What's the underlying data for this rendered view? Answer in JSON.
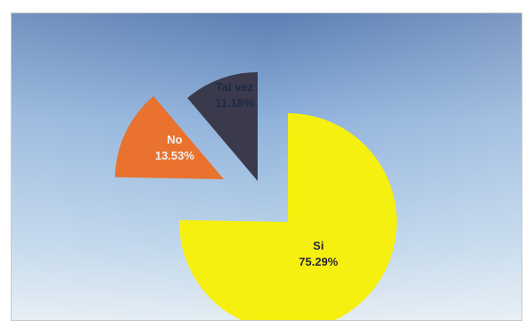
{
  "chart_data": {
    "type": "pie",
    "title": "",
    "exploded": true,
    "categories": [
      "Tal vez",
      "No",
      "Si"
    ],
    "values": [
      11.18,
      13.53,
      75.29
    ],
    "slices": [
      {
        "label": "Tal vez",
        "value_text": "11.18%",
        "value": 11.18,
        "color": "#3a3a4c"
      },
      {
        "label": "No",
        "value_text": "13.53%",
        "value": 13.53,
        "color": "#e8722e"
      },
      {
        "label": "Si",
        "value_text": "75.29%",
        "value": 75.29,
        "color": "#f5f010"
      }
    ],
    "colors": {
      "sky_top": "#5b7fb3",
      "sky_mid": "#9bbde0",
      "sky_bottom": "#dce8f2",
      "label_dark": "#2a2a3a",
      "label_light": "#f2f2f2"
    }
  }
}
